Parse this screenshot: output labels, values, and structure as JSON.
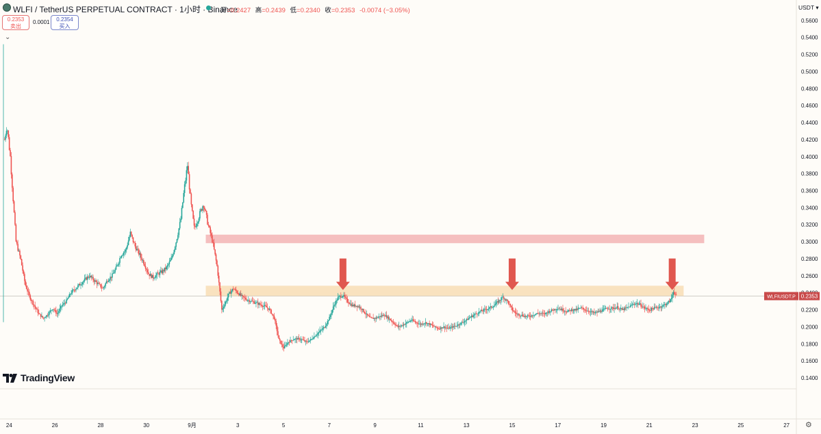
{
  "header": {
    "title": "WLFI / TetherUS PERPETUAL CONTRACT · 1小时 · Binance",
    "ohlc": {
      "open_label": "开",
      "open": "=0.2427",
      "high_label": "高",
      "high": "=0.2439",
      "low_label": "低",
      "low": "=0.2340",
      "close_label": "收",
      "close": "=0.2353",
      "change": "-0.0074 (−3.05%)"
    }
  },
  "trade": {
    "sell_price": "0.2353",
    "sell_label": "卖出",
    "spread": "0.0001",
    "buy_price": "0.2354",
    "buy_label": "买入"
  },
  "currency": "USDT ▾",
  "watermark": "TradingView",
  "price_tag": {
    "symbol": "WLFIUSDT.P",
    "price": "0.2353"
  },
  "colors": {
    "up": "#26a69a",
    "down": "#ef5350",
    "resistance_zone": "#f4b8b8",
    "support_zone": "#f8dfb8",
    "arrow": "#e0574f",
    "tag": "#c94a4a"
  },
  "icons": {
    "collapse": "chevron-down-icon",
    "settings": "gear-icon",
    "symbol_logo": "wlfi-logo-icon"
  },
  "chart_data": {
    "type": "candlestick",
    "y_axis": {
      "range": [
        0.132,
        0.584
      ],
      "ticks": [
        "0.5600",
        "0.5400",
        "0.5200",
        "0.5000",
        "0.4800",
        "0.4600",
        "0.4400",
        "0.4200",
        "0.4000",
        "0.3800",
        "0.3600",
        "0.3400",
        "0.3200",
        "0.3000",
        "0.2800",
        "0.2600",
        "0.2400",
        "0.2200",
        "0.2000",
        "0.1800",
        "0.1600",
        "0.1400"
      ],
      "tick_values": [
        0.56,
        0.54,
        0.52,
        0.5,
        0.48,
        0.46,
        0.44,
        0.42,
        0.4,
        0.38,
        0.36,
        0.34,
        0.32,
        0.3,
        0.28,
        0.26,
        0.24,
        0.22,
        0.2,
        0.18,
        0.16,
        0.14
      ]
    },
    "x_axis": {
      "ticks": [
        "24",
        "26",
        "28",
        "30",
        "9月",
        "3",
        "5",
        "7",
        "9",
        "11",
        "13",
        "15",
        "17",
        "19",
        "21",
        "23",
        "25",
        "27"
      ],
      "tick_days": [
        0,
        2,
        4,
        6,
        8,
        10,
        12,
        14,
        16,
        18,
        20,
        22,
        24,
        26,
        28,
        30,
        32,
        34
      ],
      "range_days": [
        -0.4,
        34.4
      ],
      "unit": "days since 24 Aug"
    },
    "price_path": [
      [
        -0.25,
        0.21
      ],
      [
        -0.2,
        0.42
      ],
      [
        -0.1,
        0.438
      ],
      [
        0.05,
        0.4
      ],
      [
        0.15,
        0.36
      ],
      [
        0.3,
        0.3
      ],
      [
        0.5,
        0.28
      ],
      [
        0.7,
        0.25
      ],
      [
        0.9,
        0.235
      ],
      [
        1.1,
        0.225
      ],
      [
        1.3,
        0.215
      ],
      [
        1.5,
        0.21
      ],
      [
        1.7,
        0.215
      ],
      [
        1.9,
        0.222
      ],
      [
        2.1,
        0.215
      ],
      [
        2.3,
        0.225
      ],
      [
        2.5,
        0.23
      ],
      [
        2.7,
        0.24
      ],
      [
        2.9,
        0.245
      ],
      [
        3.1,
        0.25
      ],
      [
        3.3,
        0.255
      ],
      [
        3.5,
        0.26
      ],
      [
        3.7,
        0.255
      ],
      [
        3.9,
        0.25
      ],
      [
        4.1,
        0.245
      ],
      [
        4.3,
        0.255
      ],
      [
        4.5,
        0.26
      ],
      [
        4.7,
        0.27
      ],
      [
        4.9,
        0.285
      ],
      [
        5.1,
        0.29
      ],
      [
        5.3,
        0.31
      ],
      [
        5.5,
        0.295
      ],
      [
        5.7,
        0.285
      ],
      [
        5.9,
        0.275
      ],
      [
        6.1,
        0.262
      ],
      [
        6.3,
        0.258
      ],
      [
        6.5,
        0.262
      ],
      [
        6.7,
        0.265
      ],
      [
        6.9,
        0.27
      ],
      [
        7.1,
        0.28
      ],
      [
        7.3,
        0.3
      ],
      [
        7.5,
        0.325
      ],
      [
        7.65,
        0.36
      ],
      [
        7.8,
        0.39
      ],
      [
        7.95,
        0.345
      ],
      [
        8.1,
        0.315
      ],
      [
        8.3,
        0.33
      ],
      [
        8.5,
        0.345
      ],
      [
        8.7,
        0.32
      ],
      [
        8.9,
        0.3
      ],
      [
        9.1,
        0.27
      ],
      [
        9.2,
        0.245
      ],
      [
        9.3,
        0.22
      ],
      [
        9.45,
        0.228
      ],
      [
        9.6,
        0.238
      ],
      [
        9.8,
        0.245
      ],
      [
        10.0,
        0.24
      ],
      [
        10.2,
        0.235
      ],
      [
        10.4,
        0.232
      ],
      [
        10.6,
        0.23
      ],
      [
        10.8,
        0.228
      ],
      [
        11.0,
        0.226
      ],
      [
        11.2,
        0.224
      ],
      [
        11.4,
        0.22
      ],
      [
        11.6,
        0.21
      ],
      [
        11.8,
        0.185
      ],
      [
        12.0,
        0.175
      ],
      [
        12.2,
        0.182
      ],
      [
        12.4,
        0.185
      ],
      [
        12.6,
        0.186
      ],
      [
        12.8,
        0.185
      ],
      [
        13.0,
        0.182
      ],
      [
        13.2,
        0.185
      ],
      [
        13.4,
        0.19
      ],
      [
        13.6,
        0.195
      ],
      [
        13.8,
        0.2
      ],
      [
        14.0,
        0.21
      ],
      [
        14.2,
        0.225
      ],
      [
        14.4,
        0.235
      ],
      [
        14.6,
        0.237
      ],
      [
        14.8,
        0.23
      ],
      [
        15.0,
        0.225
      ],
      [
        15.2,
        0.225
      ],
      [
        15.4,
        0.222
      ],
      [
        15.6,
        0.215
      ],
      [
        15.8,
        0.21
      ],
      [
        16.0,
        0.21
      ],
      [
        16.2,
        0.212
      ],
      [
        16.4,
        0.214
      ],
      [
        16.6,
        0.21
      ],
      [
        16.8,
        0.205
      ],
      [
        17.0,
        0.2
      ],
      [
        17.2,
        0.202
      ],
      [
        17.4,
        0.205
      ],
      [
        17.6,
        0.208
      ],
      [
        17.8,
        0.205
      ],
      [
        18.0,
        0.203
      ],
      [
        18.2,
        0.205
      ],
      [
        18.4,
        0.203
      ],
      [
        18.6,
        0.2
      ],
      [
        18.8,
        0.198
      ],
      [
        19.0,
        0.2
      ],
      [
        19.2,
        0.198
      ],
      [
        19.4,
        0.2
      ],
      [
        19.6,
        0.202
      ],
      [
        19.8,
        0.205
      ],
      [
        20.0,
        0.208
      ],
      [
        20.2,
        0.212
      ],
      [
        20.4,
        0.215
      ],
      [
        20.6,
        0.218
      ],
      [
        20.8,
        0.22
      ],
      [
        21.0,
        0.222
      ],
      [
        21.2,
        0.225
      ],
      [
        21.4,
        0.23
      ],
      [
        21.6,
        0.235
      ],
      [
        21.8,
        0.23
      ],
      [
        22.0,
        0.22
      ],
      [
        22.2,
        0.215
      ],
      [
        22.4,
        0.214
      ],
      [
        22.6,
        0.212
      ],
      [
        22.8,
        0.213
      ],
      [
        23.0,
        0.215
      ],
      [
        23.2,
        0.216
      ],
      [
        23.4,
        0.215
      ],
      [
        23.6,
        0.218
      ],
      [
        23.8,
        0.22
      ],
      [
        24.0,
        0.222
      ],
      [
        24.2,
        0.22
      ],
      [
        24.4,
        0.218
      ],
      [
        24.6,
        0.22
      ],
      [
        24.8,
        0.22
      ],
      [
        25.0,
        0.222
      ],
      [
        25.2,
        0.22
      ],
      [
        25.4,
        0.218
      ],
      [
        25.6,
        0.216
      ],
      [
        25.8,
        0.218
      ],
      [
        26.0,
        0.22
      ],
      [
        26.2,
        0.222
      ],
      [
        26.4,
        0.222
      ],
      [
        26.6,
        0.223
      ],
      [
        26.8,
        0.22
      ],
      [
        27.0,
        0.222
      ],
      [
        27.2,
        0.225
      ],
      [
        27.4,
        0.228
      ],
      [
        27.6,
        0.226
      ],
      [
        27.8,
        0.222
      ],
      [
        28.0,
        0.22
      ],
      [
        28.2,
        0.222
      ],
      [
        28.4,
        0.223
      ],
      [
        28.6,
        0.225
      ],
      [
        28.8,
        0.228
      ],
      [
        28.95,
        0.232
      ],
      [
        29.05,
        0.242
      ],
      [
        29.2,
        0.2353
      ]
    ],
    "zones": [
      {
        "name": "resistance",
        "price_low": 0.2983,
        "price_high": 0.3083,
        "day_start": 8.6,
        "day_end": 30.4
      },
      {
        "name": "support",
        "price_low": 0.2363,
        "price_high": 0.2483,
        "day_start": 8.6,
        "day_end": 29.5
      }
    ],
    "arrows": [
      {
        "day": 14.6,
        "price_top": 0.2803,
        "price_tip": 0.2433
      },
      {
        "day": 22.0,
        "price_top": 0.2803,
        "price_tip": 0.2433
      },
      {
        "day": 29.0,
        "price_top": 0.2803,
        "price_tip": 0.2433
      }
    ],
    "last_price": 0.2353
  }
}
